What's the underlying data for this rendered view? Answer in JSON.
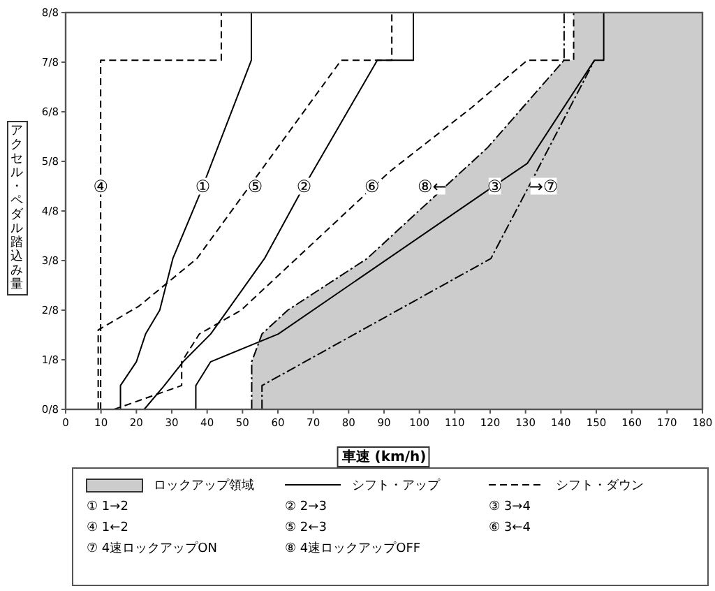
{
  "chart_data": {
    "type": "line",
    "xlabel": "車速 (km/h)",
    "ylabel": "アクセル・ペダル踏込み量",
    "xlim": [
      0,
      180
    ],
    "xticks": [
      0,
      10,
      20,
      30,
      40,
      50,
      60,
      70,
      80,
      90,
      100,
      110,
      120,
      130,
      140,
      150,
      160,
      170,
      180
    ],
    "ylim": [
      0,
      1
    ],
    "yticks": [
      {
        "value": 0,
        "label": "0/8"
      },
      {
        "value": 0.125,
        "label": "1/8"
      },
      {
        "value": 0.25,
        "label": "2/8"
      },
      {
        "value": 0.375,
        "label": "3/8"
      },
      {
        "value": 0.5,
        "label": "4/8"
      },
      {
        "value": 0.625,
        "label": "5/8"
      },
      {
        "value": 0.75,
        "label": "6/8"
      },
      {
        "value": 0.875,
        "label": "7/8"
      },
      {
        "value": 1,
        "label": "8/8"
      }
    ],
    "legend": "bottom",
    "series": [
      {
        "type": "area",
        "name": "ロックアップ領域",
        "color": "#cccccc",
        "x": [
          52.6,
          52.6,
          55.5,
          62.8,
          85.2,
          119.3,
          140.9,
          143.6,
          143.6,
          180,
          180
        ],
        "values": [
          0,
          0.12,
          0.19,
          0.25,
          0.38,
          0.66,
          0.88,
          0.88,
          1,
          1,
          0
        ]
      },
      {
        "name": "シフト・アップ",
        "color": "#000000",
        "line_style": "solid",
        "x": [
          15.5,
          15.5,
          20,
          22.6,
          26.6,
          30.3,
          37.8,
          52.5,
          52.5
        ],
        "values": [
          0,
          0.06,
          0.12,
          0.19,
          0.25,
          0.38,
          0.54,
          0.88,
          1
        ]
      },
      {
        "color": "#000000",
        "line_style": "solid",
        "x": [
          22.2,
          27.9,
          33.2,
          41,
          56.2,
          66,
          88.1,
          98.3,
          98.3
        ],
        "values": [
          0,
          0.06,
          0.12,
          0.19,
          0.38,
          0.54,
          0.88,
          0.88,
          1
        ]
      },
      {
        "color": "#000000",
        "line_style": "solid",
        "x": [
          36.8,
          36.8,
          41,
          60.1,
          120.6,
          130.5,
          149.5,
          152.1,
          152.1
        ],
        "values": [
          0,
          0.06,
          0.12,
          0.19,
          0.56,
          0.62,
          0.88,
          0.88,
          1
        ]
      },
      {
        "name": "シフト・ダウン",
        "color": "#000000",
        "line_style": "dashed",
        "x": [
          9.9,
          9.9,
          44,
          44
        ],
        "values": [
          0,
          0.88,
          0.88,
          1
        ]
      },
      {
        "color": "#000000",
        "line_style": "dashed",
        "x": [
          9.2,
          9.2,
          20.7,
          37.1,
          52.6,
          77.9,
          92.2,
          92.2
        ],
        "values": [
          0,
          0.2,
          0.26,
          0.38,
          0.57,
          0.88,
          0.88,
          1
        ]
      },
      {
        "color": "#000000",
        "line_style": "dashed",
        "x": [
          13.7,
          32.8,
          32.8,
          37.8,
          49.6,
          91.7,
          114.7,
          130.5,
          143.6,
          143.6
        ],
        "values": [
          0,
          0.06,
          0.12,
          0.19,
          0.25,
          0.6,
          0.76,
          0.88,
          0.88,
          1
        ]
      },
      {
        "color": "#000000",
        "line_style": "dashdot",
        "x": [
          55.5,
          55.5,
          120.2,
          131.4,
          149.5
        ],
        "values": [
          0,
          0.06,
          0.38,
          0.57,
          0.88
        ]
      },
      {
        "color": "#000000",
        "line_style": "dashdot",
        "x": [
          52.6,
          52.6,
          55.5,
          62.8,
          85.2,
          119.3,
          140.9,
          140.9
        ],
        "values": [
          0,
          0.12,
          0.19,
          0.25,
          0.38,
          0.66,
          0.88,
          1
        ]
      }
    ],
    "annotations": [
      {
        "text": "④",
        "x": 9.9,
        "y": 0.5625
      },
      {
        "text": "①",
        "x": 38.8,
        "y": 0.5625
      },
      {
        "text": "⑤",
        "x": 53.6,
        "y": 0.5625
      },
      {
        "text": "②",
        "x": 67.4,
        "y": 0.5625
      },
      {
        "text": "⑥",
        "x": 86.6,
        "y": 0.5625
      },
      {
        "text": "⑧←",
        "x": 107.7,
        "y": 0.5625
      },
      {
        "text": "③",
        "x": 121.3,
        "y": 0.5625
      },
      {
        "text": "→⑦",
        "x": 131,
        "y": 0.5625
      },
      "①  1→2",
      "②  2→3",
      "③  3→4",
      "④  1←2",
      "⑤  2←3",
      "⑥  3←4",
      "⑦  4速ロックアップON",
      "⑧  4速ロックアップOFF"
    ]
  }
}
